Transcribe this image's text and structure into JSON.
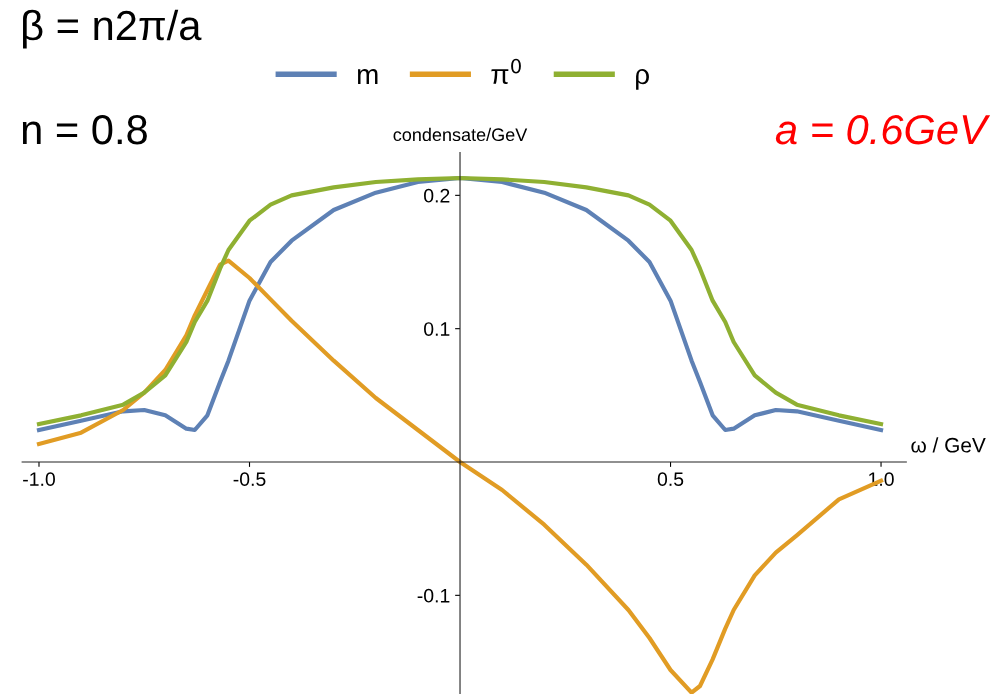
{
  "chart_data": {
    "type": "line",
    "xlabel": "ω / GeV",
    "ylabel": "condensate/GeV",
    "annotations": [
      "β = n2π/a",
      "n = 0.8",
      "a = 0.6GeV"
    ],
    "xlim": [
      -1.04,
      1.06
    ],
    "ylim": [
      -0.174,
      0.232
    ],
    "xticks": [
      {
        "value": -1,
        "label": "-1.0"
      },
      -0.5,
      0.5,
      {
        "value": 1,
        "label": "1.0"
      }
    ],
    "yticks": [
      -0.1,
      0.1,
      0.2
    ],
    "legend": "top",
    "grid": false,
    "marker": "none",
    "line_style": "solid",
    "x": [
      -1.0,
      -0.9,
      -0.8,
      -0.75,
      -0.7,
      -0.65,
      -0.63,
      -0.6,
      -0.57,
      -0.55,
      -0.5,
      -0.45,
      -0.4,
      -0.3,
      -0.2,
      -0.1,
      0.0,
      0.1,
      0.2,
      0.3,
      0.4,
      0.45,
      0.5,
      0.55,
      0.57,
      0.6,
      0.63,
      0.65,
      0.7,
      0.75,
      0.8,
      0.9,
      1.0
    ],
    "series": [
      {
        "name": "m",
        "color": "#5e81b5",
        "values": [
          0.024,
          0.031,
          0.038,
          0.039,
          0.035,
          0.025,
          0.024,
          0.035,
          0.06,
          0.076,
          0.121,
          0.15,
          0.166,
          0.189,
          0.202,
          0.21,
          0.213,
          0.21,
          0.202,
          0.189,
          0.166,
          0.15,
          0.121,
          0.076,
          0.06,
          0.035,
          0.024,
          0.025,
          0.035,
          0.039,
          0.038,
          0.031,
          0.024
        ]
      },
      {
        "name": "π$^{0}$",
        "color": "#e19c24",
        "values": [
          0.0135,
          0.022,
          0.039,
          0.052,
          0.069,
          0.095,
          0.11,
          0.129,
          0.148,
          0.151,
          0.138,
          0.122,
          0.106,
          0.076,
          0.048,
          0.024,
          0.0,
          -0.021,
          -0.047,
          -0.077,
          -0.111,
          -0.132,
          -0.156,
          -0.173,
          -0.168,
          -0.148,
          -0.125,
          -0.111,
          -0.085,
          -0.068,
          -0.055,
          -0.028,
          -0.014
        ]
      },
      {
        "name": "ρ",
        "color": "#8fb032",
        "values": [
          0.0285,
          0.035,
          0.043,
          0.052,
          0.065,
          0.09,
          0.105,
          0.121,
          0.145,
          0.159,
          0.181,
          0.193,
          0.2,
          0.206,
          0.21,
          0.212,
          0.213,
          0.212,
          0.21,
          0.206,
          0.2,
          0.193,
          0.181,
          0.159,
          0.145,
          0.121,
          0.105,
          0.09,
          0.065,
          0.052,
          0.043,
          0.035,
          0.0285
        ]
      }
    ]
  }
}
